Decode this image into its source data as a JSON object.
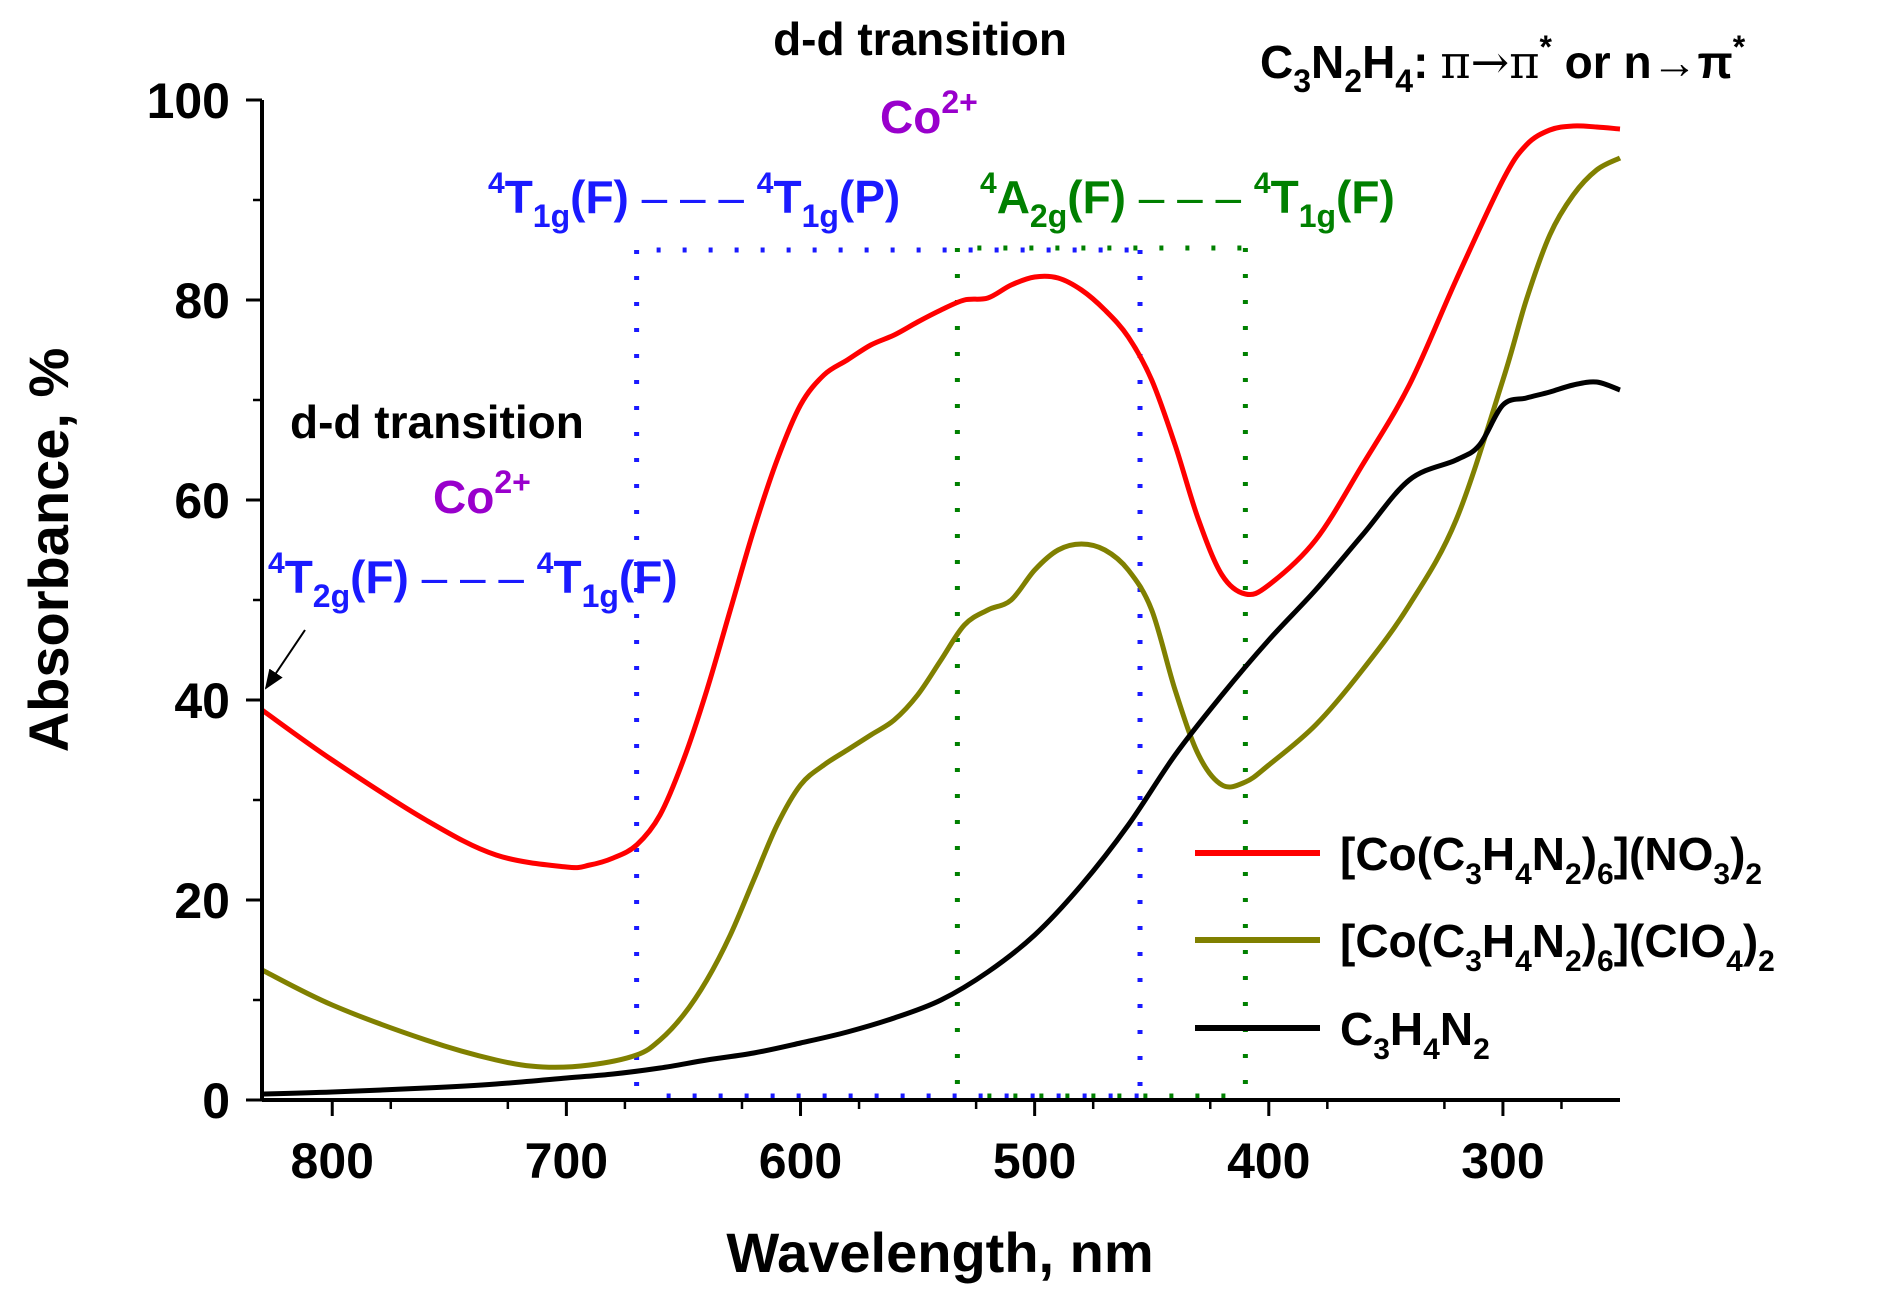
{
  "chart_data": {
    "type": "line",
    "xlabel": "Wavelength, nm",
    "ylabel": "Absorbance, %",
    "xlim": [
      830,
      250
    ],
    "ylim": [
      0,
      100
    ],
    "x_reversed": true,
    "x_ticks": [
      800,
      700,
      600,
      500,
      400,
      300
    ],
    "x_tick_labels": [
      "800",
      "700",
      "600",
      "500",
      "400",
      "300"
    ],
    "y_ticks": [
      0,
      20,
      40,
      60,
      80,
      100
    ],
    "y_tick_labels": [
      "0",
      "20",
      "40",
      "60",
      "80",
      "100"
    ],
    "legend_position": "right",
    "series": [
      {
        "name": "[Co(C3H4N2)6](NO3)2",
        "color": "#ff0000",
        "x": [
          830,
          800,
          760,
          730,
          700,
          690,
          680,
          670,
          660,
          650,
          640,
          630,
          620,
          610,
          600,
          590,
          580,
          570,
          560,
          550,
          540,
          530,
          520,
          510,
          500,
          490,
          480,
          470,
          460,
          450,
          440,
          430,
          420,
          410,
          400,
          380,
          360,
          340,
          320,
          300,
          290,
          280,
          270,
          260,
          250
        ],
        "y": [
          39,
          34,
          28,
          24.5,
          23.3,
          23.5,
          24.2,
          25.5,
          28.5,
          34,
          41,
          49,
          57,
          64,
          69.5,
          72.5,
          74,
          75.5,
          76.5,
          77.8,
          79,
          80,
          80.2,
          81.5,
          82.3,
          82.2,
          81,
          79,
          76.3,
          72,
          65.5,
          58,
          52.5,
          50.6,
          51.5,
          56,
          63.5,
          71.5,
          82,
          92,
          95.5,
          97,
          97.4,
          97.3,
          97.1
        ]
      },
      {
        "name": "[Co(C3H4N2)6](ClO4)2",
        "color": "#808000",
        "x": [
          830,
          800,
          760,
          730,
          710,
          690,
          670,
          660,
          650,
          640,
          630,
          620,
          610,
          600,
          590,
          580,
          570,
          560,
          550,
          540,
          530,
          520,
          510,
          500,
          490,
          480,
          470,
          460,
          450,
          440,
          430,
          420,
          410,
          400,
          380,
          360,
          340,
          320,
          300,
          290,
          280,
          270,
          260,
          250
        ],
        "y": [
          13,
          9.5,
          6,
          4,
          3.3,
          3.5,
          4.5,
          6,
          8.5,
          12,
          16.5,
          22,
          27.5,
          31.5,
          33.5,
          35,
          36.5,
          38,
          40.5,
          44,
          47.5,
          49,
          50,
          53,
          55,
          55.6,
          55,
          53,
          49,
          41,
          34.5,
          31.5,
          31.8,
          33.5,
          37.5,
          43,
          49.5,
          58,
          72,
          80,
          86.5,
          90.5,
          93,
          94.2
        ]
      },
      {
        "name": "C3H4N2",
        "color": "#000000",
        "x": [
          830,
          800,
          760,
          730,
          700,
          680,
          660,
          640,
          620,
          600,
          580,
          560,
          540,
          520,
          500,
          480,
          460,
          440,
          420,
          400,
          380,
          360,
          340,
          320,
          310,
          300,
          290,
          280,
          270,
          260,
          250
        ],
        "y": [
          0.6,
          0.8,
          1.2,
          1.6,
          2.2,
          2.6,
          3.2,
          4,
          4.7,
          5.7,
          6.8,
          8.2,
          10,
          12.8,
          16.5,
          21.5,
          27.5,
          34.5,
          40.5,
          46,
          51,
          56.5,
          62,
          64,
          65.5,
          69.5,
          70.2,
          70.8,
          71.5,
          71.8,
          71
        ]
      }
    ],
    "guide_lines": {
      "blue_color": "#1a1aff",
      "green_color": "#008000",
      "blue_verticals_nm": [
        670,
        455
      ],
      "blue_top_y": 85,
      "green_verticals_nm": [
        533,
        410
      ],
      "green_top_y": 85.2
    },
    "annotations": {
      "top_center": {
        "label": "d-d transition",
        "ion": "Co",
        "ion_charge": "2+",
        "ion_color": "#9900cc"
      },
      "top_right": {
        "formula_C": "C",
        "sub1": "3",
        "formula_N": "N",
        "sub2": "2",
        "formula_H": "H",
        "sub3": "4",
        "colon": ":",
        "trans1": "π→π",
        "star1": "*",
        "or": " or ",
        "trans2": "n→π",
        "star2": "*"
      },
      "left": {
        "label": "d-d transition",
        "ion": "Co",
        "ion_charge": "2+",
        "ion_color": "#9900cc"
      },
      "blue_transition_1": {
        "sup_a": "4",
        "term_a": "T",
        "sub_a": "1g",
        "state_a": "(F)",
        "dash": " – – – ",
        "sup_b": "4",
        "term_b": "T",
        "sub_b": "1g",
        "state_b": "(P)",
        "color": "#1a1aff"
      },
      "green_transition": {
        "sup_a": "4",
        "term_a": "A",
        "sub_a": "2g",
        "state_a": "(F)",
        "dash": " – – – ",
        "sup_b": "4",
        "term_b": "T",
        "sub_b": "1g",
        "state_b": "(F)",
        "color": "#008000"
      },
      "blue_transition_2": {
        "sup_a": "4",
        "term_a": "T",
        "sub_a": "2g",
        "state_a": "(F)",
        "dash": " – – – ",
        "sup_b": "4",
        "term_b": "T",
        "sub_b": "1g",
        "state_b": "(F)",
        "color": "#1a1aff"
      }
    },
    "legend": [
      {
        "open": "[Co(C",
        "s1": "3",
        "m1": "H",
        "s2": "4",
        "m2": "N",
        "s3": "2",
        "m3": ")",
        "s4": "6",
        "m4": "](NO",
        "s5": "3",
        "m5": ")",
        "s6": "2"
      },
      {
        "open": "[Co(C",
        "s1": "3",
        "m1": "H",
        "s2": "4",
        "m2": "N",
        "s3": "2",
        "m3": ")",
        "s4": "6",
        "m4": "](ClO",
        "s5": "4",
        "m5": ")",
        "s6": "2"
      },
      {
        "open": "C",
        "s1": "3",
        "m1": "H",
        "s2": "4",
        "m2": "N",
        "s3": "2"
      }
    ]
  }
}
